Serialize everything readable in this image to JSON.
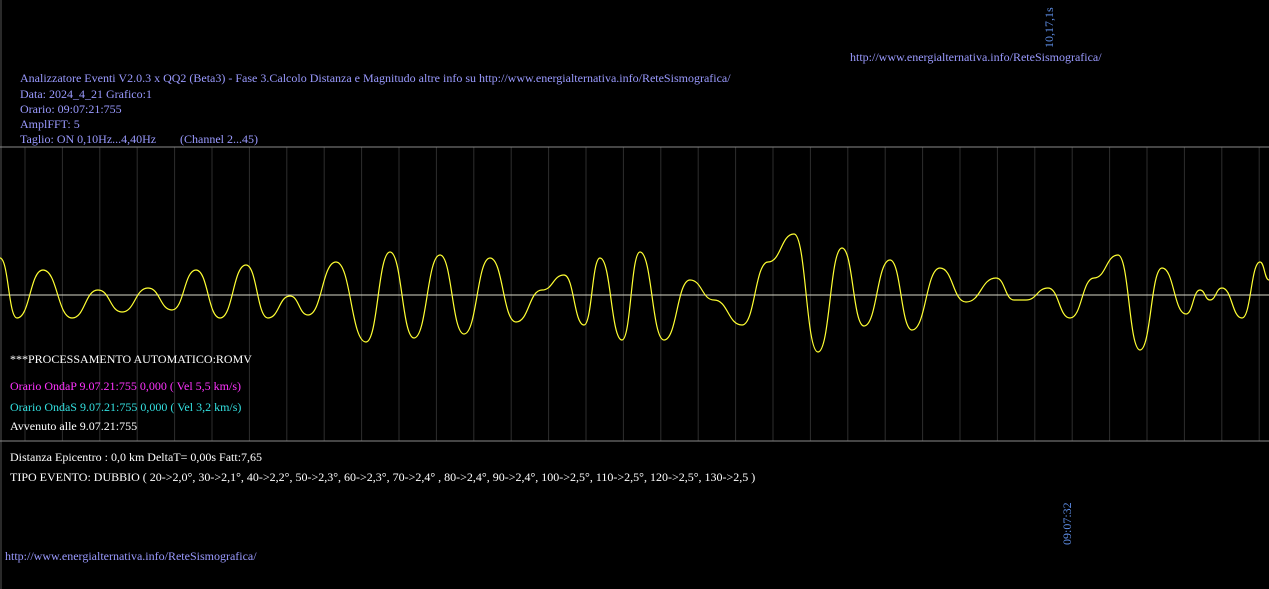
{
  "top_marker": "10,17,1s",
  "top_link": "http://www.energialternativa.info/ReteSismografica/",
  "header": {
    "title": "Analizzatore Eventi V2.0.3 x QQ2 (Beta3) - Fase 3.Calcolo Distanza e Magnitudo altre info su http://www.energialternativa.info/ReteSismografica/",
    "date": "Data: 2024_4_21 Grafico:1",
    "time": "Orario: 09:07:21:755",
    "ampl": "AmplFFT: 5",
    "cut": "Taglio: ON 0,10Hz...4,40Hz",
    "channel": "(Channel 2...45)"
  },
  "processing": {
    "title": "***PROCESSAMENTO AUTOMATICO:ROMV",
    "wave_p": "Orario OndaP 9.07.21:755  0,000 ( Vel 5,5 km/s)",
    "wave_s": "Orario OndaS 9.07.21:755  0,000 ( Vel 3,2 km/s)",
    "occurred": "Avvenuto alle 9.07.21:755"
  },
  "result": {
    "distance": "Distanza Epicentro : 0,0 km DeltaT= 0,00s  Fatt:7,65",
    "event_type": "TIPO EVENTO: DUBBIO ( 20->2,0°, 30->2,1°, 40->2,2°, 50->2,3°, 60->2,3°, 70->2,4° , 80->2,4°, 90->2,4°, 100->2,5°, 110->2,5°, 120->2,5°, 130->2,5 )"
  },
  "bottom_marker": "09:07:32",
  "bottom_link": "http://www.energialternativa.info/ReteSismografica/"
}
